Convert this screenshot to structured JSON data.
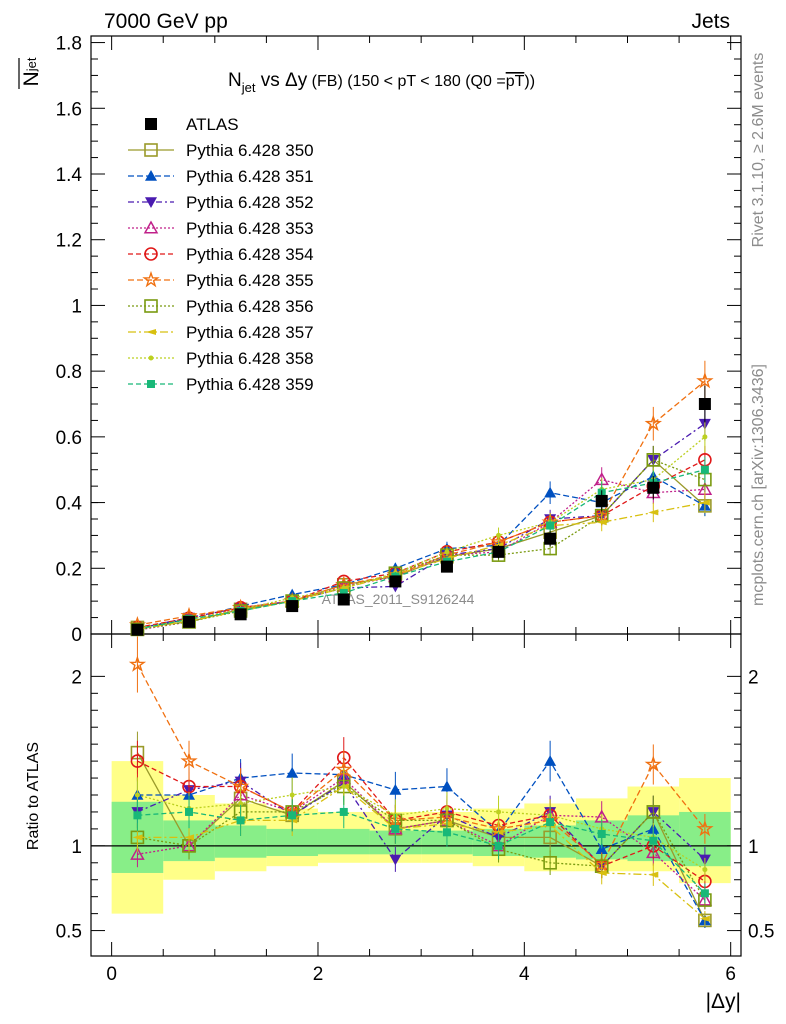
{
  "header": {
    "energy_label": "7000 GeV pp",
    "process_label": "Jets"
  },
  "side_labels": {
    "rivet": "Rivet 3.1.10, ≥ 2.6M events",
    "mcplots": "mcplots.cern.ch [arXiv:1306.3436]"
  },
  "watermark": "ATLAS_2011_S9126244",
  "chart_data": [
    {
      "type": "line",
      "panel": "main",
      "title_parts": {
        "n": "N",
        "sub": "jet",
        "mid": " vs Δy",
        "small": " (FB)",
        "cond": " (150 < pT < 180 (Q0 =",
        "overline": "pT",
        "end": "))"
      },
      "ylabel_main": "N",
      "ylabel_sub": "jet",
      "xlabel": "|Δy|",
      "xlim": [
        -0.2,
        6.1
      ],
      "ylim": [
        0,
        1.82
      ],
      "x_ticks": [
        "0",
        "2",
        "4",
        "6"
      ],
      "y_ticks": [
        "0",
        "0.2",
        "0.4",
        "0.6",
        "0.8",
        "1",
        "1.2",
        "1.4",
        "1.6",
        "1.8"
      ],
      "x": [
        0.25,
        0.75,
        1.25,
        1.75,
        2.25,
        2.75,
        3.25,
        3.75,
        4.25,
        4.75,
        5.25,
        5.75
      ],
      "legend_position": "top-left",
      "series": [
        {
          "name": "ATLAS",
          "color": "#000000",
          "marker": "square-filled",
          "dash": "none",
          "values": [
            0.013,
            0.037,
            0.06,
            0.085,
            0.105,
            0.16,
            0.205,
            0.25,
            0.29,
            0.405,
            0.445,
            0.7
          ]
        },
        {
          "name": "Pythia 6.428 350",
          "color": "#9a9a2a",
          "marker": "square-open",
          "dash": "solid",
          "values": [
            0.02,
            0.037,
            0.075,
            0.1,
            0.15,
            0.175,
            0.235,
            0.26,
            0.31,
            0.36,
            0.53,
            0.39
          ]
        },
        {
          "name": "Pythia 6.428 351",
          "color": "#0050c0",
          "marker": "triangle-up",
          "dash": "6,3",
          "values": [
            0.018,
            0.045,
            0.085,
            0.12,
            0.15,
            0.2,
            0.26,
            0.27,
            0.43,
            0.4,
            0.48,
            0.39
          ]
        },
        {
          "name": "Pythia 6.428 352",
          "color": "#4a1bb0",
          "marker": "triangle-down",
          "dash": "6,3,2,3",
          "values": [
            0.016,
            0.05,
            0.08,
            0.1,
            0.14,
            0.145,
            0.24,
            0.26,
            0.35,
            0.36,
            0.53,
            0.64
          ]
        },
        {
          "name": "Pythia 6.428 353",
          "color": "#c0208a",
          "marker": "triangle-open",
          "dash": "2,2",
          "values": [
            0.012,
            0.037,
            0.08,
            0.1,
            0.145,
            0.175,
            0.24,
            0.25,
            0.34,
            0.47,
            0.43,
            0.44
          ]
        },
        {
          "name": "Pythia 6.428 354",
          "color": "#e01818",
          "marker": "circle-open",
          "dash": "5,3",
          "values": [
            0.02,
            0.048,
            0.08,
            0.1,
            0.16,
            0.185,
            0.25,
            0.28,
            0.34,
            0.36,
            0.45,
            0.53
          ]
        },
        {
          "name": "Pythia 6.428 355",
          "color": "#f07010",
          "marker": "star-open",
          "dash": "6,3",
          "values": [
            0.027,
            0.055,
            0.08,
            0.1,
            0.15,
            0.18,
            0.24,
            0.28,
            0.34,
            0.36,
            0.64,
            0.77
          ]
        },
        {
          "name": "Pythia 6.428 356",
          "color": "#7a9a10",
          "marker": "square-open",
          "dash": "2,2",
          "values": [
            0.014,
            0.037,
            0.07,
            0.1,
            0.14,
            0.185,
            0.24,
            0.24,
            0.26,
            0.36,
            0.53,
            0.47
          ]
        },
        {
          "name": "Pythia 6.428 357",
          "color": "#d8c010",
          "marker": "tri-small",
          "dash": "8,3,2,3",
          "values": [
            0.014,
            0.04,
            0.07,
            0.1,
            0.14,
            0.18,
            0.23,
            0.27,
            0.33,
            0.34,
            0.37,
            0.4
          ]
        },
        {
          "name": "Pythia 6.428 358",
          "color": "#bcd020",
          "marker": "dot",
          "dash": "2,2",
          "values": [
            0.017,
            0.045,
            0.075,
            0.11,
            0.14,
            0.185,
            0.25,
            0.3,
            0.34,
            0.44,
            0.47,
            0.6
          ]
        },
        {
          "name": "Pythia 6.428 359",
          "color": "#18b878",
          "marker": "square-small",
          "dash": "5,3",
          "values": [
            0.015,
            0.045,
            0.07,
            0.1,
            0.125,
            0.175,
            0.22,
            0.25,
            0.33,
            0.43,
            0.46,
            0.5
          ]
        }
      ]
    },
    {
      "type": "line",
      "panel": "ratio",
      "ylabel": "Ratio to ATLAS",
      "ylim": [
        0.35,
        2.25
      ],
      "y_ticks": [
        "0.5",
        "1",
        "2"
      ],
      "band_edges": [
        0,
        0.5,
        1.0,
        1.5,
        2.0,
        2.5,
        3.0,
        3.5,
        4.0,
        4.5,
        5.0,
        5.5,
        6.0
      ],
      "yellow_band": [
        [
          0.6,
          1.5
        ],
        [
          0.8,
          1.3
        ],
        [
          0.85,
          1.25
        ],
        [
          0.88,
          1.22
        ],
        [
          0.9,
          1.2
        ],
        [
          0.9,
          1.2
        ],
        [
          0.9,
          1.2
        ],
        [
          0.88,
          1.22
        ],
        [
          0.85,
          1.25
        ],
        [
          0.85,
          1.28
        ],
        [
          0.85,
          1.35
        ],
        [
          0.78,
          1.4
        ]
      ],
      "green_band": [
        [
          0.84,
          1.26
        ],
        [
          0.91,
          1.15
        ],
        [
          0.93,
          1.12
        ],
        [
          0.94,
          1.1
        ],
        [
          0.95,
          1.1
        ],
        [
          0.95,
          1.09
        ],
        [
          0.95,
          1.09
        ],
        [
          0.94,
          1.1
        ],
        [
          0.93,
          1.12
        ],
        [
          0.92,
          1.15
        ],
        [
          0.91,
          1.18
        ],
        [
          0.88,
          1.2
        ]
      ],
      "series_values": [
        [
          1.55,
          1.0,
          1.28,
          1.18,
          1.38,
          1.1,
          1.15,
          1.05,
          1.05,
          0.88,
          1.2,
          0.56
        ],
        [
          1.3,
          1.3,
          1.4,
          1.43,
          1.42,
          1.33,
          1.35,
          1.08,
          1.5,
          0.98,
          1.1,
          0.56
        ],
        [
          1.2,
          1.33,
          1.38,
          1.18,
          1.37,
          0.92,
          1.18,
          1.05,
          1.2,
          0.88,
          1.2,
          0.92
        ],
        [
          0.95,
          1.0,
          1.3,
          1.2,
          1.4,
          1.1,
          1.15,
          1.0,
          1.18,
          1.17,
          0.96,
          0.68
        ],
        [
          1.5,
          1.35,
          1.35,
          1.2,
          1.52,
          1.15,
          1.2,
          1.12,
          1.18,
          0.88,
          1.0,
          0.79
        ],
        [
          2.07,
          1.5,
          1.35,
          1.2,
          1.45,
          1.15,
          1.17,
          1.1,
          1.15,
          0.89,
          1.48,
          1.1
        ],
        [
          1.05,
          1.0,
          1.2,
          1.2,
          1.35,
          1.15,
          1.15,
          0.98,
          0.9,
          0.88,
          1.2,
          0.68
        ],
        [
          1.05,
          1.05,
          1.15,
          1.15,
          1.35,
          1.1,
          1.13,
          1.08,
          1.12,
          0.84,
          0.83,
          0.57
        ],
        [
          1.3,
          1.22,
          1.25,
          1.3,
          1.35,
          1.18,
          1.22,
          1.2,
          1.18,
          1.1,
          1.05,
          0.86
        ],
        [
          1.18,
          1.2,
          1.15,
          1.18,
          1.2,
          1.1,
          1.08,
          1.0,
          1.14,
          1.07,
          1.03,
          0.72
        ]
      ]
    }
  ]
}
